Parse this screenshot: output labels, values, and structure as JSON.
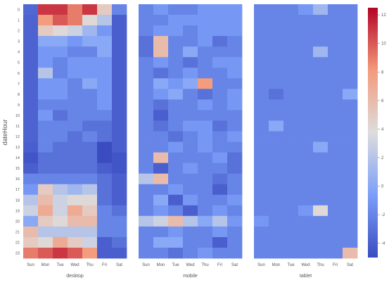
{
  "chart_data": {
    "type": "heatmap",
    "title": "",
    "ylabel": "dateHour",
    "x_categories": [
      "Sun",
      "Mon",
      "Tue",
      "Wed",
      "Thu",
      "Fri",
      "Sat"
    ],
    "y_categories": [
      "0",
      "1",
      "2",
      "3",
      "4",
      "5",
      "6",
      "7",
      "8",
      "9",
      "10",
      "11",
      "12",
      "13",
      "14",
      "15",
      "16",
      "17",
      "18",
      "19",
      "20",
      "21",
      "22",
      "23"
    ],
    "colorbar": {
      "min": -5,
      "max": 12.5,
      "ticks": [
        -4,
        -2,
        0,
        2,
        4,
        6,
        8,
        10,
        12
      ]
    },
    "colors": {
      "low": "#3b4cc0",
      "mid": "#dddddd",
      "high": "#b40426"
    },
    "panels": [
      {
        "name": "desktop",
        "values": [
          [
            -3.5,
            11,
            11,
            9,
            11,
            5,
            -2
          ],
          [
            -3.8,
            8,
            10,
            9,
            4,
            2,
            -4
          ],
          [
            -3.8,
            5,
            4,
            3,
            1,
            -1,
            -4
          ],
          [
            -3.8,
            0,
            0,
            -1,
            0,
            0,
            -4
          ],
          [
            -3.8,
            -1,
            -1,
            -2,
            -2,
            0,
            -4
          ],
          [
            -3.8,
            -1,
            -2,
            -1,
            -1,
            -1,
            -4
          ],
          [
            -3.8,
            2,
            -2,
            -1,
            -1,
            -1,
            -4
          ],
          [
            -3.8,
            -1,
            -1,
            -2,
            0,
            -1,
            -4
          ],
          [
            -3.8,
            -1,
            -1,
            -2,
            -2,
            -1,
            -4
          ],
          [
            -3.8,
            -2,
            -2,
            -2,
            -2,
            -1,
            -4
          ],
          [
            -3.8,
            -1,
            -3,
            -2,
            -2,
            -2,
            -4
          ],
          [
            -3.8,
            -2,
            -2,
            -2,
            -3,
            -3,
            -4
          ],
          [
            -3.8,
            -2,
            -2,
            -3,
            -2,
            -3,
            -4
          ],
          [
            -4,
            -2,
            -3,
            -3,
            -3,
            -5,
            -4
          ],
          [
            -4.5,
            -3,
            -3,
            -3,
            -3,
            -5,
            -4.5
          ],
          [
            -4,
            -3,
            -3,
            -3,
            -3,
            -4,
            -4.5
          ],
          [
            -2,
            -2,
            -2,
            -2,
            -2,
            -3,
            -4
          ],
          [
            -1,
            5,
            2,
            1,
            2,
            -3,
            -4
          ],
          [
            2,
            6,
            3,
            4,
            4,
            -3,
            -4
          ],
          [
            3,
            7,
            3,
            7,
            5,
            -2,
            -3
          ],
          [
            0,
            5,
            4,
            6,
            6,
            -2,
            -2
          ],
          [
            6,
            2,
            2,
            2,
            2,
            -2,
            -2
          ],
          [
            5,
            4,
            7,
            5,
            3,
            -4,
            -3
          ],
          [
            9,
            10,
            11,
            10,
            8,
            -4,
            -4
          ]
        ]
      },
      {
        "name": "mobile",
        "values": [
          [
            -2,
            -1,
            -2,
            -2,
            -1,
            -1,
            -1
          ],
          [
            -2,
            -2,
            -1,
            -1,
            -1,
            -1,
            -1
          ],
          [
            -2,
            -1,
            -1,
            -2,
            -1,
            -1,
            -1
          ],
          [
            -3,
            6,
            -2,
            -2,
            -1,
            -3,
            -2
          ],
          [
            -3,
            6,
            -2,
            0,
            -2,
            -2,
            -2
          ],
          [
            -2,
            -1,
            -2,
            -3,
            -2,
            -1,
            -1
          ],
          [
            -2,
            -3,
            -2,
            -1,
            -2,
            -2,
            -1
          ],
          [
            -2,
            0,
            -1,
            0,
            8,
            -2,
            -2
          ],
          [
            -2,
            -1,
            0,
            -2,
            -3,
            -2,
            -1
          ],
          [
            -2,
            -3,
            -2,
            -2,
            -1,
            -2,
            -1
          ],
          [
            -2,
            -4,
            -2,
            -2,
            -2,
            -2,
            -2
          ],
          [
            -2,
            -3,
            -2,
            -1,
            -1,
            -3,
            -2
          ],
          [
            -2,
            -2,
            -3,
            -2,
            -1,
            -2,
            -1
          ],
          [
            -2,
            -2,
            -1,
            -2,
            -1,
            -2,
            -2
          ],
          [
            -2,
            6,
            -2,
            -2,
            -2,
            -1,
            -3
          ],
          [
            -2,
            -4,
            -2,
            -1,
            -2,
            -2,
            -3
          ],
          [
            2,
            6,
            -2,
            -2,
            -2,
            -3,
            -2
          ],
          [
            -2,
            -2,
            -1,
            -2,
            -2,
            -4,
            -2
          ],
          [
            -2,
            0,
            -4,
            -1,
            -2,
            -2,
            -1
          ],
          [
            -2,
            -1,
            -2,
            -4,
            -2,
            -1,
            -2
          ],
          [
            2,
            3,
            6,
            2,
            0,
            2,
            -1
          ],
          [
            -2,
            -2,
            -1,
            -2,
            -2,
            -1,
            -2
          ],
          [
            -2,
            0,
            0,
            -2,
            -2,
            -4,
            -2
          ],
          [
            -2,
            -2,
            -3,
            -2,
            -1,
            -2,
            -2
          ]
        ]
      },
      {
        "name": "tablet",
        "values": [
          [
            -2,
            -2,
            -2,
            -1,
            1,
            -2,
            -2
          ],
          [
            -2,
            -2,
            -2,
            -2,
            -2,
            -2,
            -2
          ],
          [
            -2,
            -2,
            -2,
            -2,
            -2,
            -2,
            -2
          ],
          [
            -2,
            -2,
            -2,
            -2,
            -2,
            -2,
            -2
          ],
          [
            -2,
            -2,
            -2,
            -2,
            1,
            -2,
            -2
          ],
          [
            -2,
            -2,
            -2,
            -2,
            -2,
            -2,
            -2
          ],
          [
            -2,
            -2,
            -2,
            -2,
            -2,
            -2,
            -2
          ],
          [
            -2,
            -2,
            -2,
            -2,
            -2,
            -2,
            -2
          ],
          [
            -2,
            -3,
            -2,
            -2,
            -2,
            -2,
            0
          ],
          [
            -2,
            -2,
            -2,
            -2,
            -2,
            -2,
            -2
          ],
          [
            -2,
            -2,
            -2,
            -2,
            -2,
            -2,
            -2
          ],
          [
            -2,
            0,
            -2,
            -2,
            -2,
            -2,
            -2
          ],
          [
            -2,
            -2,
            -2,
            -2,
            -2,
            -2,
            -2
          ],
          [
            -2,
            -2,
            -2,
            -2,
            0,
            -2,
            -2
          ],
          [
            -2,
            -2,
            -2,
            -2,
            -2,
            -2,
            -2
          ],
          [
            -2,
            -2,
            -2,
            -2,
            -2,
            -2,
            -2
          ],
          [
            -2,
            -2,
            -2,
            -2,
            -2,
            -2,
            -2
          ],
          [
            -2,
            -2,
            -2,
            -2,
            -2,
            -2,
            -2
          ],
          [
            -2,
            -2,
            -2,
            -2,
            -2,
            -2,
            -2
          ],
          [
            -2,
            -2,
            -2,
            -1,
            4,
            -2,
            -2
          ],
          [
            -1,
            -2,
            -2,
            -2,
            -2,
            -2,
            -2
          ],
          [
            -2,
            -2,
            -2,
            -2,
            -2,
            -2,
            -2
          ],
          [
            -2,
            -2,
            -2,
            -2,
            -2,
            -2,
            -2
          ],
          [
            -2,
            -2,
            -2,
            -2,
            -2,
            -2,
            6
          ]
        ]
      }
    ]
  }
}
